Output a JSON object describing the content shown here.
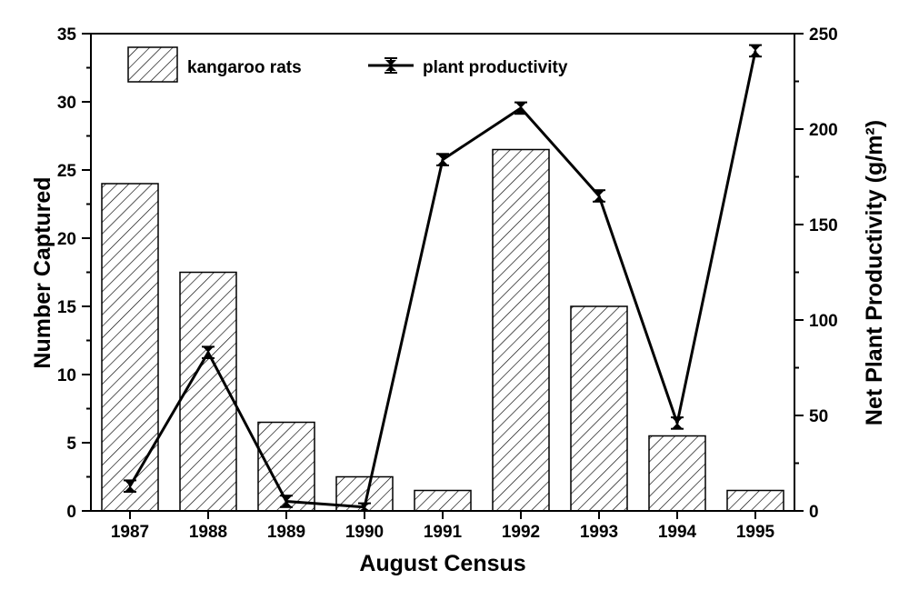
{
  "chart_data": {
    "type": "bar",
    "title": "",
    "xlabel": "August Census",
    "ylabel": "Number Captured",
    "y2label": "Net Plant Productivity (g/m²)",
    "categories": [
      "1987",
      "1988",
      "1989",
      "1990",
      "1991",
      "1992",
      "1993",
      "1994",
      "1995"
    ],
    "ylim": [
      0,
      35
    ],
    "y2lim": [
      0,
      250
    ],
    "yticks": [
      "0",
      "5",
      "10",
      "15",
      "20",
      "25",
      "30",
      "35"
    ],
    "y2ticks": [
      "0",
      "50",
      "100",
      "150",
      "200",
      "250"
    ],
    "grid": false,
    "legend_position": "top-left",
    "series": [
      {
        "name": "kangaroo rats",
        "type": "bar",
        "axis": "left",
        "pattern": "diagonal-hatch",
        "values": [
          24,
          17.5,
          6.5,
          2.5,
          1.5,
          26.5,
          15,
          5.5,
          1.5
        ]
      },
      {
        "name": "plant productivity",
        "type": "line",
        "axis": "right",
        "marker": "error-bar",
        "values": [
          13,
          83,
          5,
          2,
          184,
          211,
          165,
          46,
          241
        ],
        "error": [
          3,
          3,
          3,
          2,
          3,
          3,
          3,
          3,
          3
        ]
      }
    ]
  }
}
